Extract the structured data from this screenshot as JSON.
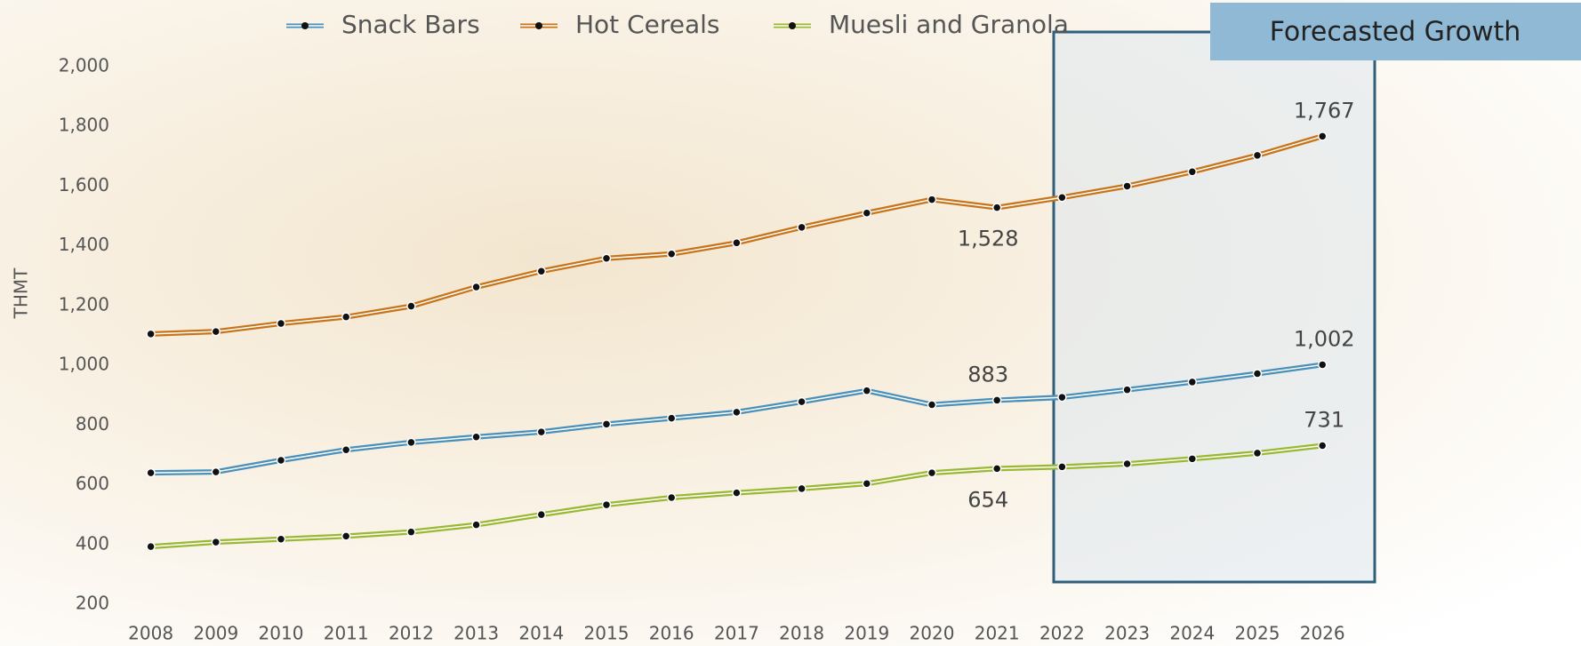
{
  "chart_data": {
    "type": "line",
    "y_label": "THMT",
    "categories": [
      "2008",
      "2009",
      "2010",
      "2011",
      "2012",
      "2013",
      "2014",
      "2015",
      "2016",
      "2017",
      "2018",
      "2019",
      "2020",
      "2021",
      "2022",
      "2023",
      "2024",
      "2025",
      "2026"
    ],
    "series": [
      {
        "name": "Snack Bars",
        "color": "#4a90b8",
        "values": [
          640,
          643,
          682,
          717,
          742,
          760,
          777,
          803,
          823,
          843,
          878,
          915,
          868,
          883,
          893,
          918,
          944,
          972,
          1002
        ],
        "value_labels": [
          null,
          null,
          null,
          null,
          null,
          null,
          null,
          null,
          null,
          null,
          null,
          null,
          null,
          "883",
          null,
          null,
          null,
          null,
          "1,002"
        ]
      },
      {
        "name": "Hot Cereals",
        "color": "#c8741a",
        "values": [
          1105,
          1113,
          1140,
          1162,
          1198,
          1262,
          1315,
          1358,
          1373,
          1410,
          1462,
          1510,
          1555,
          1528,
          1562,
          1600,
          1648,
          1703,
          1767
        ],
        "value_labels": [
          null,
          null,
          null,
          null,
          null,
          null,
          null,
          null,
          null,
          null,
          null,
          null,
          null,
          "1,528",
          null,
          null,
          null,
          null,
          "1,767"
        ]
      },
      {
        "name": "Muesli and Granola",
        "color": "#9ab833",
        "values": [
          393,
          408,
          418,
          428,
          442,
          466,
          500,
          533,
          557,
          573,
          587,
          604,
          640,
          654,
          660,
          670,
          687,
          706,
          731
        ],
        "value_labels": [
          null,
          null,
          null,
          null,
          null,
          null,
          null,
          null,
          null,
          null,
          null,
          null,
          null,
          "654",
          null,
          null,
          null,
          null,
          "731"
        ]
      }
    ],
    "ylim": [
      200,
      2000
    ],
    "yticks": [
      200,
      400,
      600,
      800,
      {
        "value": 1000,
        "label": "1,000"
      },
      {
        "value": 1200,
        "label": "1,200"
      },
      {
        "value": 1400,
        "label": "1,400"
      },
      {
        "value": 1600,
        "label": "1,600"
      },
      {
        "value": 1800,
        "label": "1,800"
      },
      {
        "value": 2000,
        "label": "2,000"
      }
    ],
    "grid": true,
    "annotation": "Forecasted Growth"
  }
}
